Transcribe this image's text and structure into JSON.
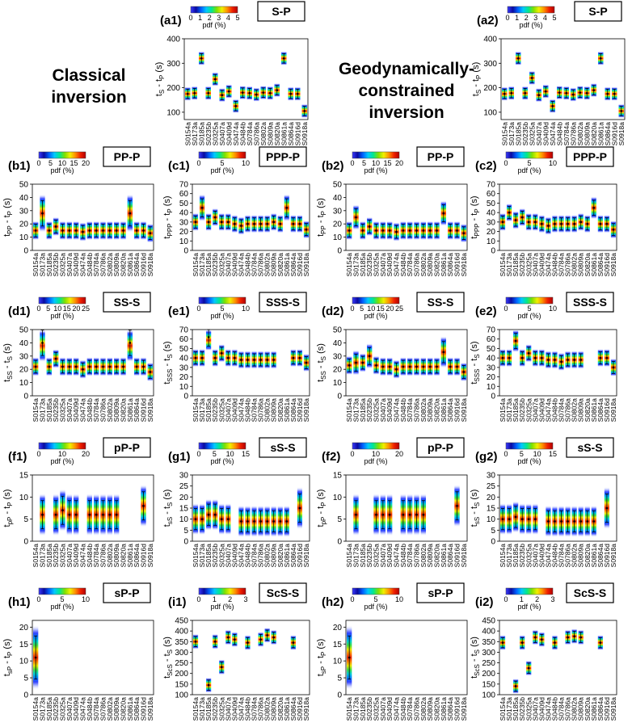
{
  "headings": {
    "classical": "Classical\ninversion",
    "geodynamic": "Geodynamically-\nconstrained\ninversion"
  },
  "pdf_label": "pdf (%)",
  "pdf_colormap": [
    "#3b3bff",
    "#0a0aa0",
    "#0060ff",
    "#00c8ff",
    "#00e890",
    "#80e000",
    "#f0f000",
    "#ff9000",
    "#f02000",
    "#b00000"
  ],
  "station_labels": [
    "S0154a",
    "S0173a",
    "S0185a",
    "S0235b",
    "S0325a",
    "S0407a",
    "S0409d",
    "S0474a",
    "S0484b",
    "S0784a",
    "S0786a",
    "S0802a",
    "S0809a",
    "S0820a",
    "S0861a",
    "S0864a",
    "S0916d",
    "S0918a"
  ],
  "chart_data": [
    {
      "panel_label": "(a1)",
      "phase": "S-P",
      "type": "heatmap",
      "ylim": [
        70,
        400
      ],
      "yticks": [
        100,
        200,
        300,
        400
      ],
      "ylabel_main": "t",
      "ylabel_sub": "S",
      "ylabel_mid": " - t",
      "ylabel_sub2": "P",
      "ylabel_unit": " (s)",
      "pdf_ticks": [
        0,
        1,
        2,
        3,
        4,
        5
      ],
      "values": [
        175,
        178,
        320,
        178,
        235,
        170,
        185,
        125,
        180,
        178,
        172,
        180,
        178,
        190,
        320,
        175,
        175,
        105
      ],
      "spread": [
        12,
        12,
        12,
        12,
        12,
        12,
        12,
        12,
        12,
        12,
        12,
        12,
        12,
        12,
        12,
        12,
        12,
        12
      ]
    },
    {
      "panel_label": "(a2)",
      "phase": "S-P",
      "type": "heatmap",
      "ylim": [
        70,
        400
      ],
      "yticks": [
        100,
        200,
        300,
        400
      ],
      "ylabel_main": "t",
      "ylabel_sub": "S",
      "ylabel_mid": " - t",
      "ylabel_sub2": "P",
      "ylabel_unit": " (s)",
      "pdf_ticks": [
        0,
        1,
        2,
        3,
        4,
        5
      ],
      "values": [
        175,
        178,
        320,
        178,
        240,
        170,
        185,
        125,
        180,
        178,
        172,
        180,
        178,
        190,
        320,
        175,
        175,
        105
      ],
      "spread": [
        12,
        12,
        12,
        12,
        12,
        12,
        12,
        12,
        12,
        12,
        12,
        12,
        12,
        12,
        12,
        12,
        12,
        12
      ]
    },
    {
      "panel_label": "(b1)",
      "phase": "PP-P",
      "type": "heatmap",
      "ylim": [
        0,
        50
      ],
      "yticks": [
        0,
        10,
        20,
        30,
        40,
        50
      ],
      "ylabel_main": "t",
      "ylabel_sub": "PP",
      "ylabel_mid": " - t",
      "ylabel_sub2": "P",
      "ylabel_unit": " (s)",
      "pdf_ticks": [
        0,
        5,
        10,
        15,
        20
      ],
      "values": [
        15,
        28,
        15,
        18,
        15,
        15,
        15,
        14,
        15,
        15,
        15,
        15,
        15,
        15,
        28,
        15,
        15,
        13
      ],
      "spread": [
        3,
        6,
        3,
        3,
        3,
        3,
        3,
        3,
        3,
        3,
        3,
        3,
        3,
        3,
        6,
        3,
        3,
        3
      ]
    },
    {
      "panel_label": "(b2)",
      "phase": "PP-P",
      "type": "heatmap",
      "ylim": [
        0,
        50
      ],
      "yticks": [
        0,
        10,
        20,
        30,
        40,
        50
      ],
      "ylabel_main": "t",
      "ylabel_sub": "PP",
      "ylabel_mid": " - t",
      "ylabel_sub2": "P",
      "ylabel_unit": " (s)",
      "pdf_ticks": [
        0,
        5,
        10,
        15,
        20
      ],
      "values": [
        15,
        25,
        15,
        18,
        15,
        15,
        15,
        14,
        15,
        15,
        15,
        15,
        15,
        15,
        28,
        15,
        15,
        13
      ],
      "spread": [
        3,
        4,
        3,
        3,
        3,
        3,
        3,
        3,
        3,
        3,
        3,
        3,
        3,
        3,
        4,
        3,
        3,
        3
      ]
    },
    {
      "panel_label": "(c1)",
      "phase": "PPP-P",
      "type": "heatmap",
      "ylim": [
        0,
        70
      ],
      "yticks": [
        0,
        10,
        20,
        30,
        40,
        50,
        60,
        70
      ],
      "ylabel_main": "t",
      "ylabel_sub": "PPP",
      "ylabel_mid": " - t",
      "ylabel_sub2": "P",
      "ylabel_unit": " (s)",
      "pdf_ticks": [
        0,
        5,
        10
      ],
      "values": [
        30,
        45,
        30,
        35,
        30,
        30,
        28,
        26,
        28,
        28,
        28,
        28,
        30,
        28,
        45,
        28,
        28,
        22
      ],
      "spread": [
        4,
        6,
        4,
        4,
        4,
        4,
        4,
        4,
        4,
        4,
        4,
        4,
        4,
        4,
        6,
        4,
        4,
        4
      ]
    },
    {
      "panel_label": "(c2)",
      "phase": "PPP-P",
      "type": "heatmap",
      "ylim": [
        0,
        70
      ],
      "yticks": [
        0,
        10,
        20,
        30,
        40,
        50,
        60,
        70
      ],
      "ylabel_main": "t",
      "ylabel_sub": "PPP",
      "ylabel_mid": " - t",
      "ylabel_sub2": "P",
      "ylabel_unit": " (s)",
      "pdf_ticks": [
        0,
        5,
        10
      ],
      "values": [
        30,
        40,
        32,
        35,
        30,
        30,
        28,
        26,
        28,
        28,
        28,
        28,
        30,
        28,
        45,
        28,
        28,
        22
      ],
      "spread": [
        4,
        4,
        4,
        4,
        4,
        4,
        4,
        4,
        4,
        4,
        4,
        4,
        4,
        4,
        5,
        4,
        4,
        4
      ]
    },
    {
      "panel_label": "(d1)",
      "phase": "SS-S",
      "type": "heatmap",
      "ylim": [
        0,
        50
      ],
      "yticks": [
        0,
        10,
        20,
        30,
        40,
        50
      ],
      "ylabel_main": "t",
      "ylabel_sub": "SS",
      "ylabel_mid": " - t",
      "ylabel_sub2": "S",
      "ylabel_unit": " (s)",
      "pdf_ticks": [
        0,
        5,
        10,
        15,
        20,
        25
      ],
      "values": [
        22,
        40,
        22,
        28,
        22,
        22,
        22,
        20,
        22,
        22,
        22,
        22,
        22,
        22,
        40,
        22,
        22,
        18
      ],
      "spread": [
        3,
        6,
        3,
        3,
        3,
        3,
        3,
        3,
        3,
        3,
        3,
        3,
        3,
        3,
        6,
        3,
        3,
        3
      ]
    },
    {
      "panel_label": "(d2)",
      "phase": "SS-S",
      "type": "heatmap",
      "ylim": [
        0,
        50
      ],
      "yticks": [
        0,
        10,
        20,
        30,
        40,
        50
      ],
      "ylabel_main": "t",
      "ylabel_sub": "SS",
      "ylabel_mid": " - t",
      "ylabel_sub2": "S",
      "ylabel_unit": " (s)",
      "pdf_ticks": [
        0,
        5,
        10,
        15,
        20,
        25
      ],
      "values": [
        23,
        25,
        25,
        30,
        23,
        22,
        22,
        20,
        22,
        22,
        22,
        22,
        22,
        22,
        33,
        22,
        22,
        18
      ],
      "spread": [
        3,
        4,
        3,
        4,
        3,
        3,
        3,
        3,
        3,
        3,
        3,
        3,
        3,
        3,
        5,
        3,
        3,
        3
      ]
    },
    {
      "panel_label": "(e1)",
      "phase": "SSS-S",
      "type": "heatmap",
      "ylim": [
        0,
        70
      ],
      "yticks": [
        0,
        10,
        20,
        30,
        40,
        50,
        60,
        70
      ],
      "ylabel_main": "t",
      "ylabel_sub": "SSS",
      "ylabel_mid": " - t",
      "ylabel_sub2": "S",
      "ylabel_unit": " (s)",
      "pdf_ticks": [
        0,
        5,
        10
      ],
      "values": [
        40,
        40,
        62,
        40,
        45,
        40,
        40,
        38,
        38,
        38,
        38,
        38,
        38,
        null,
        null,
        40,
        40,
        35
      ],
      "spread": [
        4,
        4,
        6,
        4,
        4,
        4,
        4,
        4,
        4,
        4,
        4,
        4,
        4,
        4,
        4,
        4,
        4,
        4
      ]
    },
    {
      "panel_label": "(e2)",
      "phase": "SSS-S",
      "type": "heatmap",
      "ylim": [
        0,
        70
      ],
      "yticks": [
        0,
        10,
        20,
        30,
        40,
        50,
        60,
        70
      ],
      "ylabel_main": "t",
      "ylabel_sub": "SSS",
      "ylabel_mid": " - t",
      "ylabel_sub2": "S",
      "ylabel_unit": " (s)",
      "pdf_ticks": [
        0,
        5,
        10
      ],
      "values": [
        40,
        40,
        58,
        40,
        45,
        40,
        40,
        38,
        38,
        36,
        38,
        38,
        38,
        null,
        null,
        40,
        40,
        30
      ],
      "spread": [
        4,
        4,
        5,
        4,
        4,
        4,
        4,
        4,
        4,
        4,
        4,
        4,
        4,
        4,
        4,
        4,
        4,
        4
      ]
    },
    {
      "panel_label": "(f1)",
      "phase": "pP-P",
      "type": "heatmap",
      "ylim": [
        0,
        15
      ],
      "yticks": [
        0,
        5,
        10,
        15
      ],
      "ylabel_main": "t",
      "ylabel_sub": "pP",
      "ylabel_mid": " - t",
      "ylabel_sub2": "P",
      "ylabel_unit": " (s)",
      "pdf_ticks": [
        0,
        10,
        20
      ],
      "values": [
        null,
        6,
        null,
        6,
        7,
        6,
        6,
        null,
        6,
        6,
        6,
        6,
        6,
        null,
        null,
        null,
        8,
        null
      ],
      "spread": [
        2,
        2,
        2,
        2,
        2,
        2,
        2,
        2,
        2,
        2,
        2,
        2,
        2,
        2,
        2,
        2,
        2,
        2
      ]
    },
    {
      "panel_label": "(f2)",
      "phase": "pP-P",
      "type": "heatmap",
      "ylim": [
        0,
        15
      ],
      "yticks": [
        0,
        5,
        10,
        15
      ],
      "ylabel_main": "t",
      "ylabel_sub": "pP",
      "ylabel_mid": " - t",
      "ylabel_sub2": "P",
      "ylabel_unit": " (s)",
      "pdf_ticks": [
        0,
        10,
        20
      ],
      "values": [
        null,
        6,
        null,
        null,
        6,
        6,
        6,
        null,
        6,
        6,
        6,
        6,
        null,
        null,
        null,
        null,
        8,
        null
      ],
      "spread": [
        2,
        2,
        2,
        2,
        2,
        2,
        2,
        2,
        2,
        2,
        2,
        2,
        2,
        2,
        2,
        2,
        2,
        2
      ]
    },
    {
      "panel_label": "(g1)",
      "phase": "sS-S",
      "type": "heatmap",
      "ylim": [
        0,
        30
      ],
      "yticks": [
        0,
        5,
        10,
        15,
        20,
        25,
        30
      ],
      "ylabel_main": "t",
      "ylabel_sub": "sS",
      "ylabel_mid": " - t",
      "ylabel_sub2": "S",
      "ylabel_unit": " (s)",
      "pdf_ticks": [
        0,
        5,
        10,
        15
      ],
      "values": [
        10,
        10,
        12,
        12,
        10,
        10,
        null,
        9,
        9,
        9,
        9,
        9,
        9,
        9,
        9,
        null,
        15,
        null
      ],
      "spread": [
        3,
        3,
        3,
        3,
        3,
        3,
        3,
        3,
        3,
        3,
        3,
        3,
        3,
        3,
        3,
        3,
        4,
        3
      ]
    },
    {
      "panel_label": "(g2)",
      "phase": "sS-S",
      "type": "heatmap",
      "ylim": [
        0,
        30
      ],
      "yticks": [
        0,
        5,
        10,
        15,
        20,
        25,
        30
      ],
      "ylabel_main": "t",
      "ylabel_sub": "sS",
      "ylabel_mid": " - t",
      "ylabel_sub2": "S",
      "ylabel_unit": " (s)",
      "pdf_ticks": [
        0,
        5,
        10,
        15
      ],
      "values": [
        10,
        10,
        11,
        10,
        10,
        10,
        null,
        9,
        9,
        9,
        9,
        9,
        9,
        9,
        9,
        null,
        15,
        null
      ],
      "spread": [
        3,
        3,
        3,
        3,
        3,
        3,
        3,
        3,
        3,
        3,
        3,
        3,
        3,
        3,
        3,
        3,
        4,
        3
      ]
    },
    {
      "panel_label": "(h1)",
      "phase": "sP-P",
      "type": "heatmap",
      "ylim": [
        0,
        22
      ],
      "yticks": [
        0,
        5,
        10,
        15,
        20
      ],
      "ylabel_main": "t",
      "ylabel_sub": "sP",
      "ylabel_mid": " - t",
      "ylabel_sub2": "P",
      "ylabel_unit": " (s)",
      "pdf_ticks": [
        0,
        5,
        10
      ],
      "values": [
        11,
        null,
        null,
        null,
        null,
        null,
        null,
        null,
        null,
        null,
        null,
        null,
        null,
        null,
        null,
        null,
        null,
        null
      ],
      "spread": [
        4,
        4,
        4,
        4,
        4,
        4,
        4,
        4,
        4,
        4,
        4,
        4,
        4,
        4,
        4,
        4,
        4,
        4
      ]
    },
    {
      "panel_label": "(h2)",
      "phase": "sP-P",
      "type": "heatmap",
      "ylim": [
        0,
        22
      ],
      "yticks": [
        0,
        5,
        10,
        15,
        20
      ],
      "ylabel_main": "t",
      "ylabel_sub": "sP",
      "ylabel_mid": " - t",
      "ylabel_sub2": "P",
      "ylabel_unit": " (s)",
      "pdf_ticks": [
        0,
        5,
        10
      ],
      "values": [
        11,
        null,
        null,
        null,
        null,
        null,
        null,
        null,
        null,
        null,
        null,
        null,
        null,
        null,
        null,
        null,
        null,
        null
      ],
      "spread": [
        4,
        4,
        4,
        4,
        4,
        4,
        4,
        4,
        4,
        4,
        4,
        4,
        4,
        4,
        4,
        4,
        4,
        4
      ]
    },
    {
      "panel_label": "(i1)",
      "phase": "ScS-S",
      "type": "heatmap",
      "ylim": [
        100,
        450
      ],
      "yticks": [
        100,
        150,
        200,
        250,
        300,
        350,
        400,
        450
      ],
      "ylabel_main": "t",
      "ylabel_sub": "ScS",
      "ylabel_mid": " - t",
      "ylabel_sub2": "S",
      "ylabel_unit": " (s)",
      "pdf_ticks": [
        0,
        1,
        2,
        3
      ],
      "values": [
        350,
        null,
        145,
        350,
        230,
        370,
        360,
        null,
        345,
        null,
        360,
        380,
        370,
        null,
        null,
        345,
        null,
        null
      ],
      "spread": [
        15,
        15,
        15,
        15,
        15,
        15,
        15,
        15,
        15,
        15,
        15,
        15,
        15,
        15,
        15,
        15,
        15,
        15
      ]
    },
    {
      "panel_label": "(i2)",
      "phase": "ScS-S",
      "type": "heatmap",
      "ylim": [
        100,
        450
      ],
      "yticks": [
        100,
        150,
        200,
        250,
        300,
        350,
        400,
        450
      ],
      "ylabel_main": "t",
      "ylabel_sub": "ScS",
      "ylabel_mid": " - t",
      "ylabel_sub2": "S",
      "ylabel_unit": " (s)",
      "pdf_ticks": [
        0,
        1,
        2,
        3
      ],
      "values": [
        345,
        null,
        140,
        345,
        225,
        370,
        360,
        null,
        345,
        null,
        370,
        375,
        370,
        null,
        null,
        345,
        null,
        null
      ],
      "spread": [
        15,
        15,
        15,
        15,
        15,
        15,
        15,
        15,
        15,
        15,
        15,
        15,
        15,
        15,
        15,
        15,
        15,
        15
      ]
    }
  ]
}
